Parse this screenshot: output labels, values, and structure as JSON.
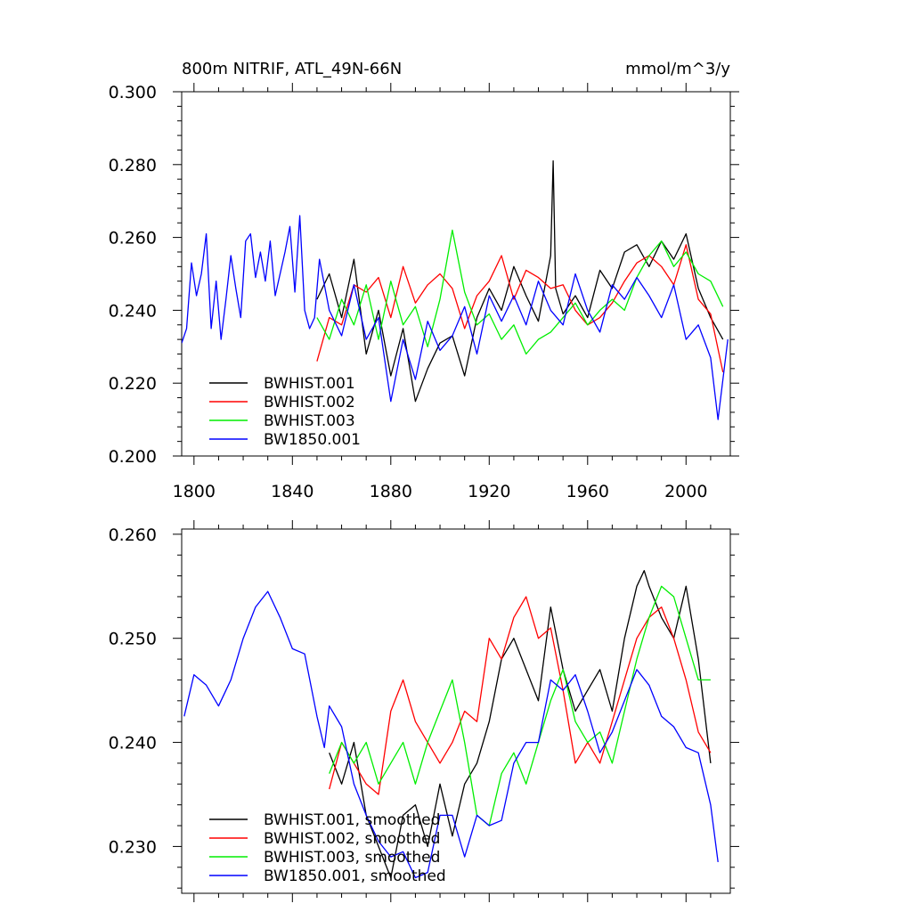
{
  "chart_data": [
    {
      "type": "line",
      "title": "800m NITRIF, ATL_49N-66N",
      "units": "mmol/m^3/y",
      "xlim": [
        1795,
        2018
      ],
      "ylim": [
        0.2,
        0.3
      ],
      "xticks": [
        1800,
        1840,
        1880,
        1920,
        1960,
        2000
      ],
      "xtick_labels": [
        "1800",
        "1840",
        "1880",
        "1920",
        "1960",
        "2000"
      ],
      "yticks": [
        0.2,
        0.22,
        0.24,
        0.26,
        0.28,
        0.3
      ],
      "ytick_labels": [
        "0.200",
        "0.220",
        "0.240",
        "0.260",
        "0.280",
        "0.300"
      ],
      "legend_position": "bottom-left",
      "series": [
        {
          "name": "BWHIST.001",
          "color": "#000000",
          "x": [
            1850,
            1855,
            1860,
            1865,
            1870,
            1875,
            1880,
            1885,
            1890,
            1895,
            1900,
            1905,
            1910,
            1915,
            1920,
            1925,
            1930,
            1935,
            1940,
            1945,
            1946,
            1947,
            1950,
            1955,
            1960,
            1965,
            1970,
            1975,
            1980,
            1985,
            1990,
            1995,
            2000,
            2005,
            2010,
            2015
          ],
          "values": [
            0.243,
            0.25,
            0.238,
            0.254,
            0.228,
            0.24,
            0.222,
            0.235,
            0.215,
            0.224,
            0.231,
            0.233,
            0.222,
            0.238,
            0.246,
            0.24,
            0.252,
            0.244,
            0.237,
            0.255,
            0.281,
            0.246,
            0.239,
            0.244,
            0.238,
            0.251,
            0.246,
            0.256,
            0.258,
            0.252,
            0.259,
            0.254,
            0.261,
            0.246,
            0.238,
            0.232
          ]
        },
        {
          "name": "BWHIST.002",
          "color": "#ff0000",
          "x": [
            1850,
            1855,
            1860,
            1865,
            1870,
            1875,
            1880,
            1885,
            1890,
            1895,
            1900,
            1905,
            1910,
            1915,
            1920,
            1925,
            1930,
            1935,
            1940,
            1945,
            1950,
            1955,
            1960,
            1965,
            1970,
            1975,
            1980,
            1985,
            1990,
            1995,
            2000,
            2005,
            2010,
            2015
          ],
          "values": [
            0.226,
            0.238,
            0.236,
            0.247,
            0.245,
            0.249,
            0.238,
            0.252,
            0.242,
            0.247,
            0.25,
            0.246,
            0.235,
            0.244,
            0.248,
            0.255,
            0.243,
            0.251,
            0.249,
            0.246,
            0.247,
            0.24,
            0.236,
            0.238,
            0.242,
            0.248,
            0.253,
            0.255,
            0.252,
            0.247,
            0.258,
            0.243,
            0.239,
            0.223
          ]
        },
        {
          "name": "BWHIST.003",
          "color": "#00ee00",
          "x": [
            1850,
            1855,
            1860,
            1865,
            1870,
            1875,
            1880,
            1885,
            1890,
            1895,
            1900,
            1905,
            1910,
            1915,
            1920,
            1925,
            1930,
            1935,
            1940,
            1945,
            1950,
            1955,
            1960,
            1965,
            1970,
            1975,
            1980,
            1985,
            1990,
            1995,
            2000,
            2005,
            2010,
            2015
          ],
          "values": [
            0.238,
            0.232,
            0.243,
            0.236,
            0.247,
            0.232,
            0.248,
            0.236,
            0.241,
            0.23,
            0.243,
            0.262,
            0.245,
            0.236,
            0.239,
            0.232,
            0.236,
            0.228,
            0.232,
            0.234,
            0.238,
            0.242,
            0.236,
            0.24,
            0.243,
            0.24,
            0.249,
            0.255,
            0.259,
            0.252,
            0.256,
            0.25,
            0.248,
            0.241
          ]
        },
        {
          "name": "BW1850.001",
          "color": "#0000ff",
          "x": [
            1795,
            1797,
            1799,
            1801,
            1803,
            1805,
            1807,
            1809,
            1811,
            1813,
            1815,
            1817,
            1819,
            1821,
            1823,
            1825,
            1827,
            1829,
            1831,
            1833,
            1835,
            1837,
            1839,
            1841,
            1843,
            1845,
            1847,
            1849,
            1851,
            1855,
            1860,
            1865,
            1870,
            1875,
            1880,
            1885,
            1890,
            1895,
            1900,
            1905,
            1910,
            1915,
            1920,
            1925,
            1930,
            1935,
            1940,
            1945,
            1950,
            1955,
            1960,
            1965,
            1970,
            1975,
            1980,
            1985,
            1990,
            1995,
            2000,
            2005,
            2010,
            2013,
            2017
          ],
          "values": [
            0.231,
            0.235,
            0.253,
            0.244,
            0.25,
            0.261,
            0.235,
            0.248,
            0.232,
            0.243,
            0.255,
            0.246,
            0.238,
            0.259,
            0.261,
            0.249,
            0.256,
            0.248,
            0.259,
            0.244,
            0.25,
            0.256,
            0.263,
            0.245,
            0.266,
            0.24,
            0.235,
            0.238,
            0.254,
            0.24,
            0.233,
            0.247,
            0.232,
            0.238,
            0.215,
            0.232,
            0.221,
            0.237,
            0.229,
            0.233,
            0.241,
            0.228,
            0.244,
            0.237,
            0.244,
            0.236,
            0.248,
            0.24,
            0.236,
            0.25,
            0.24,
            0.234,
            0.247,
            0.243,
            0.249,
            0.244,
            0.238,
            0.247,
            0.232,
            0.236,
            0.227,
            0.21,
            0.232
          ]
        }
      ]
    },
    {
      "type": "line",
      "title": "",
      "xlim": [
        1795,
        2018
      ],
      "ylim": [
        0.2255,
        0.2605
      ],
      "xticks": [
        1800,
        1840,
        1880,
        1920,
        1960,
        2000
      ],
      "yticks": [
        0.23,
        0.24,
        0.25,
        0.26
      ],
      "ytick_labels": [
        "0.230",
        "0.240",
        "0.250",
        "0.260"
      ],
      "legend_position": "bottom-left",
      "series": [
        {
          "name": "BWHIST.001, smoothed",
          "color": "#000000",
          "x": [
            1855,
            1860,
            1865,
            1870,
            1875,
            1880,
            1885,
            1890,
            1895,
            1900,
            1905,
            1910,
            1915,
            1920,
            1925,
            1930,
            1935,
            1940,
            1945,
            1950,
            1955,
            1960,
            1965,
            1970,
            1975,
            1980,
            1983,
            1985,
            1990,
            1995,
            2000,
            2005,
            2010
          ],
          "values": [
            0.239,
            0.236,
            0.24,
            0.233,
            0.23,
            0.227,
            0.233,
            0.234,
            0.23,
            0.236,
            0.231,
            0.236,
            0.238,
            0.242,
            0.248,
            0.25,
            0.247,
            0.244,
            0.253,
            0.247,
            0.243,
            0.245,
            0.247,
            0.243,
            0.25,
            0.255,
            0.2565,
            0.255,
            0.252,
            0.25,
            0.255,
            0.248,
            0.238
          ]
        },
        {
          "name": "BWHIST.002, smoothed",
          "color": "#ff0000",
          "x": [
            1855,
            1860,
            1865,
            1870,
            1875,
            1880,
            1885,
            1890,
            1895,
            1900,
            1905,
            1910,
            1915,
            1920,
            1925,
            1930,
            1935,
            1940,
            1945,
            1950,
            1955,
            1960,
            1965,
            1970,
            1975,
            1980,
            1985,
            1990,
            1995,
            2000,
            2005,
            2010
          ],
          "values": [
            0.2355,
            0.24,
            0.238,
            0.236,
            0.235,
            0.243,
            0.246,
            0.242,
            0.24,
            0.238,
            0.24,
            0.243,
            0.242,
            0.25,
            0.248,
            0.252,
            0.254,
            0.25,
            0.251,
            0.245,
            0.238,
            0.24,
            0.238,
            0.242,
            0.246,
            0.25,
            0.252,
            0.253,
            0.25,
            0.246,
            0.241,
            0.239
          ]
        },
        {
          "name": "BWHIST.003, smoothed",
          "color": "#00ee00",
          "x": [
            1855,
            1860,
            1865,
            1870,
            1875,
            1880,
            1885,
            1890,
            1895,
            1900,
            1905,
            1910,
            1915,
            1920,
            1925,
            1930,
            1935,
            1940,
            1945,
            1950,
            1955,
            1960,
            1965,
            1970,
            1975,
            1980,
            1985,
            1990,
            1995,
            2000,
            2005,
            2010
          ],
          "values": [
            0.237,
            0.24,
            0.238,
            0.24,
            0.236,
            0.238,
            0.24,
            0.236,
            0.24,
            0.243,
            0.246,
            0.24,
            0.233,
            0.232,
            0.237,
            0.239,
            0.236,
            0.24,
            0.244,
            0.247,
            0.242,
            0.24,
            0.241,
            0.238,
            0.243,
            0.248,
            0.252,
            0.255,
            0.254,
            0.25,
            0.246,
            0.246
          ]
        },
        {
          "name": "BW1850.001, smoothed",
          "color": "#0000ff",
          "x": [
            1796,
            1800,
            1805,
            1810,
            1815,
            1820,
            1825,
            1830,
            1835,
            1840,
            1845,
            1850,
            1853,
            1855,
            1860,
            1865,
            1870,
            1875,
            1880,
            1885,
            1890,
            1895,
            1900,
            1905,
            1910,
            1915,
            1920,
            1925,
            1930,
            1935,
            1940,
            1945,
            1950,
            1955,
            1960,
            1965,
            1970,
            1975,
            1980,
            1985,
            1990,
            1995,
            2000,
            2005,
            2010,
            2013
          ],
          "values": [
            0.2425,
            0.2465,
            0.2455,
            0.2435,
            0.246,
            0.25,
            0.253,
            0.2545,
            0.252,
            0.249,
            0.2485,
            0.2425,
            0.2395,
            0.2435,
            0.2415,
            0.236,
            0.233,
            0.2305,
            0.229,
            0.2295,
            0.227,
            0.2275,
            0.233,
            0.233,
            0.229,
            0.233,
            0.232,
            0.2325,
            0.238,
            0.24,
            0.24,
            0.246,
            0.245,
            0.2465,
            0.243,
            0.239,
            0.241,
            0.244,
            0.247,
            0.2455,
            0.2425,
            0.2415,
            0.2395,
            0.239,
            0.234,
            0.2285
          ]
        }
      ]
    }
  ]
}
